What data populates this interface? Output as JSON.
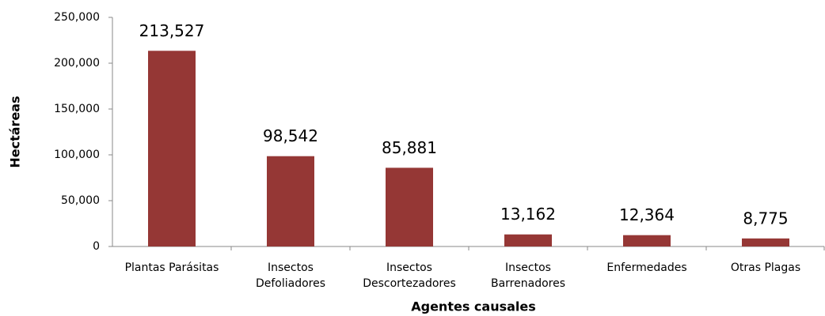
{
  "chart_data": {
    "type": "bar",
    "x_label": "Agentes causales",
    "y_label": "Hectáreas",
    "categories": [
      [
        "Plantas Parásitas"
      ],
      [
        "Insectos",
        "Defoliadores"
      ],
      [
        "Insectos",
        "Descortezadores"
      ],
      [
        "Insectos",
        "Barrenadores"
      ],
      [
        "Enfermedades"
      ],
      [
        "Otras Plagas"
      ]
    ],
    "values": [
      213527,
      98542,
      85881,
      13162,
      12364,
      8775
    ],
    "value_labels": [
      "213,527",
      "98,542",
      "85,881",
      "13,162",
      "12,364",
      "8,775"
    ],
    "color": "#953735",
    "ylim": [
      0,
      250000
    ],
    "yticks": [
      0,
      {
        "value": 50000,
        "label": "50,000"
      },
      {
        "value": 100000,
        "label": "100,000"
      },
      {
        "value": 150000,
        "label": "150,000"
      },
      {
        "value": 200000,
        "label": "200,000"
      },
      {
        "value": 250000,
        "label": "250,000"
      }
    ],
    "grid": false
  }
}
